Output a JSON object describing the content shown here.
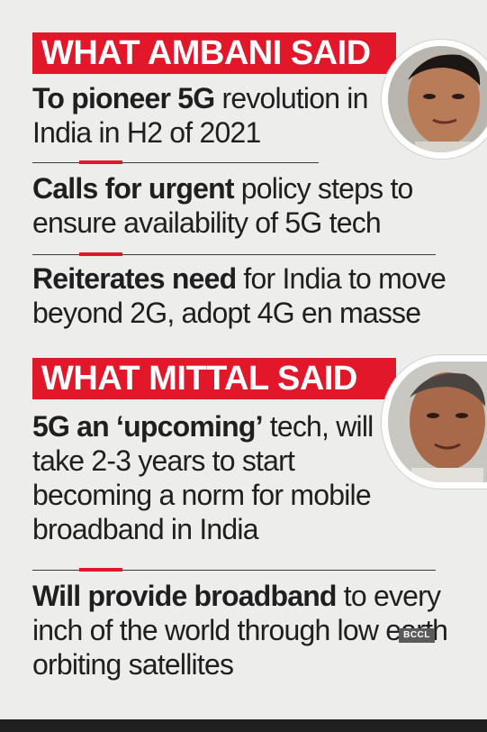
{
  "sections": [
    {
      "heading": "WHAT AMBANI SAID",
      "items": [
        {
          "bold": "To pioneer 5G",
          "rest": " revolution in India in H2 of 2021"
        },
        {
          "bold": "Calls for urgent",
          "rest": " policy steps to ensure availability of 5G tech"
        },
        {
          "bold": "Reiterates need",
          "rest": " for India to move beyond 2G, adopt 4G en masse"
        }
      ]
    },
    {
      "heading": "WHAT MITTAL SAID",
      "items": [
        {
          "bold": "5G an ‘upcoming’",
          "rest": " tech, will take 2-3 years to start becoming a norm for mobile broadband in India"
        },
        {
          "bold": "Will provide broadband",
          "rest": " to every inch of the world through low earth orbiting satellites"
        }
      ]
    }
  ],
  "watermark": "BCCL",
  "colors": {
    "accent": "#e2172a",
    "background": "#ededec",
    "text": "#1f1f1f"
  }
}
